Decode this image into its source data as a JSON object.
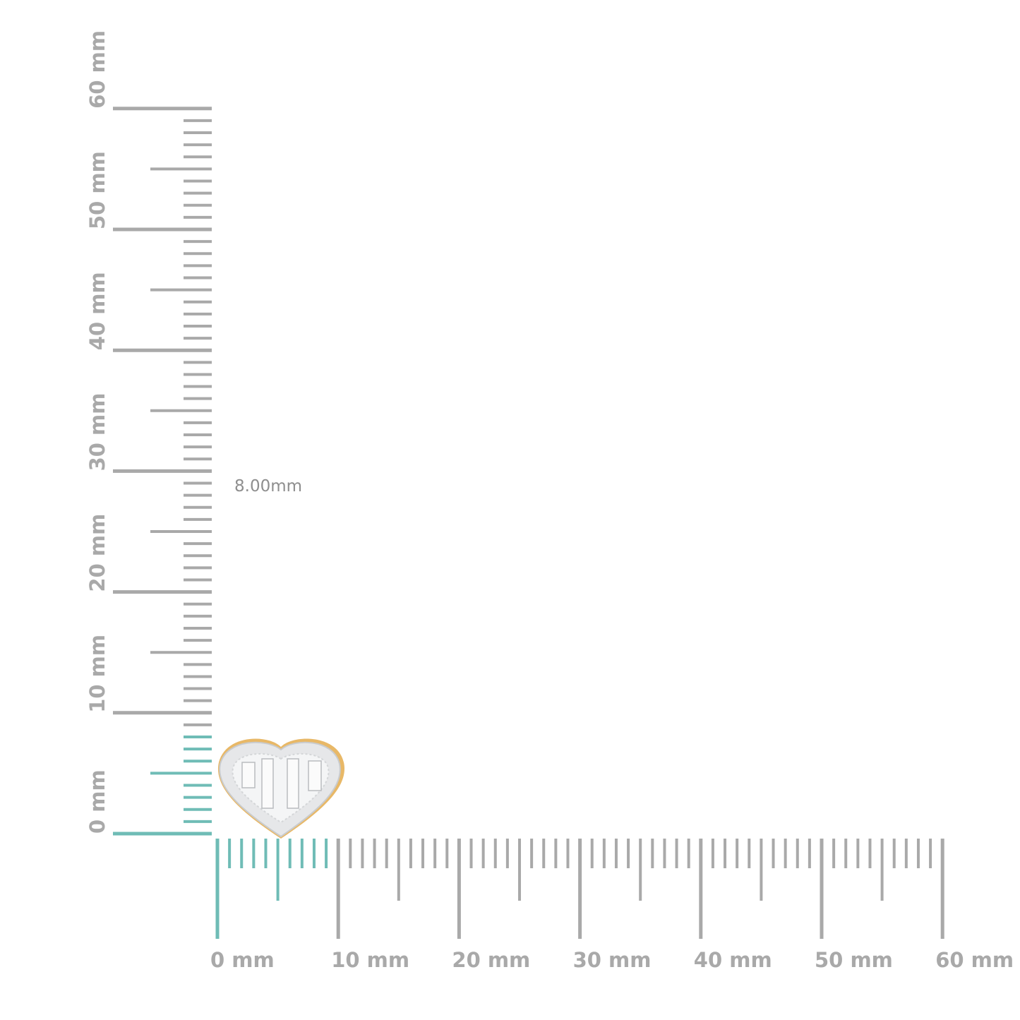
{
  "measurement_label": "8.00mm",
  "ruler": {
    "unit": "mm",
    "range": [
      0,
      60
    ],
    "major_step": 10,
    "half_step": 5,
    "minor_step": 1,
    "vertical_labels": [
      "0 mm",
      "10 mm",
      "20 mm",
      "30 mm",
      "40 mm",
      "50 mm",
      "60 mm"
    ],
    "horizontal_labels": [
      "0 mm",
      "10 mm",
      "20 mm",
      "30 mm",
      "40 mm",
      "50 mm",
      "60 mm"
    ],
    "highlight_vertical_mm": 8,
    "highlight_horizontal_mm": 9
  },
  "colors": {
    "tick": "#a9a9a9",
    "highlight": "#6fbcb6",
    "metal": "#e8b867",
    "stone": "#e4e6e8"
  },
  "product": {
    "shape": "heart",
    "icon": "heart-earring-icon"
  }
}
